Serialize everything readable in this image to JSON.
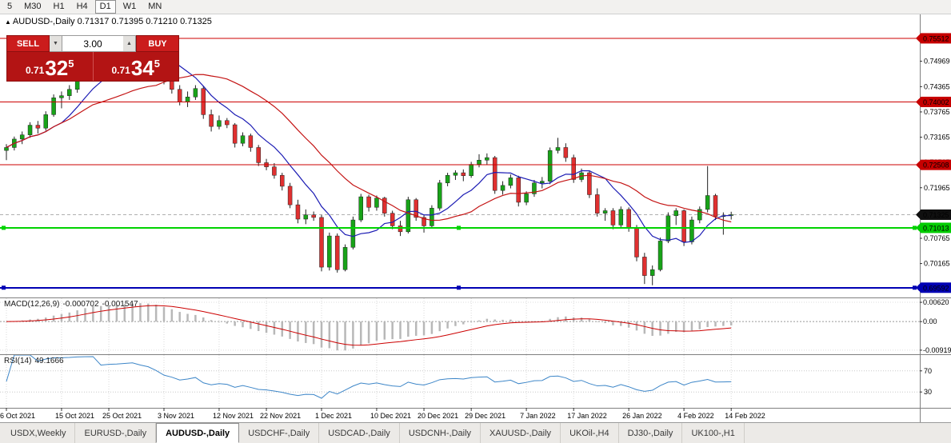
{
  "toolbar": {
    "timeframes": [
      {
        "label": "5",
        "active": false
      },
      {
        "label": "M30",
        "active": false
      },
      {
        "label": "H1",
        "active": false
      },
      {
        "label": "H4",
        "active": false
      },
      {
        "label": "D1",
        "active": true
      },
      {
        "label": "W1",
        "active": false
      },
      {
        "label": "MN",
        "active": false
      }
    ]
  },
  "chart_header": {
    "marker_icon": "▲",
    "symbol_title": "AUDUSD-,Daily",
    "ohlc": "0.71317 0.71395 0.71210 0.71325"
  },
  "trade_panel": {
    "sell_label": "SELL",
    "buy_label": "BUY",
    "volume": "3.00",
    "spin_down_icon": "▼",
    "spin_up_icon": "▲",
    "sell_price": {
      "prefix": "0.71",
      "big": "32",
      "sup": "5"
    },
    "buy_price": {
      "prefix": "0.71",
      "big": "34",
      "sup": "5"
    }
  },
  "chart_data": {
    "type": "candlestick",
    "symbol": "AUDUSD-,Daily",
    "open": 0.71317,
    "high": 0.71395,
    "low": 0.7121,
    "close": 0.71325,
    "current_price": 0.71325,
    "price_range": {
      "min": 0.6936,
      "max": 0.7608
    },
    "macd_range": {
      "min": -0.0105,
      "max": 0.0075
    },
    "colors": {
      "up": "#18a318",
      "down": "#e03030",
      "wick": "#222222",
      "macd_hist": "#b8b8b8",
      "macd_signal": "#cc0000",
      "rsi": "#3d86c8",
      "grid": "#d9d9d9",
      "badge_current": "#101010"
    },
    "ma": [
      {
        "period": 8,
        "color": "#1c1cb4"
      },
      {
        "period": 20,
        "color": "#c41414"
      }
    ],
    "hlines": [
      {
        "value": 0.75512,
        "color": "#cc0000",
        "width": 1,
        "handles": false
      },
      {
        "value": 0.74002,
        "color": "#cc0000",
        "width": 1,
        "handles": false
      },
      {
        "value": 0.72508,
        "color": "#cc0000",
        "width": 1,
        "handles": false
      },
      {
        "value": 0.71013,
        "color": "#00d300",
        "width": 2,
        "handles": true
      },
      {
        "value": 0.69592,
        "color": "#0000b4",
        "width": 2,
        "handles": true
      }
    ],
    "price_axis": {
      "labels": [
        0.74969,
        0.74365,
        0.73765,
        0.73165,
        0.72565,
        0.71965,
        0.70765,
        0.70165
      ],
      "badges": [
        {
          "value": 0.75512,
          "text": "0.75512",
          "bg": "#c70000",
          "fg": "#ffffff"
        },
        {
          "value": 0.74002,
          "text": "0.74002",
          "bg": "#c70000",
          "fg": "#ffffff"
        },
        {
          "value": 0.72508,
          "text": "0.72508",
          "bg": "#c70000",
          "fg": "#ffffff"
        },
        {
          "value": 0.71325,
          "text": "0.71325",
          "bg": "#101010",
          "fg": "#ffffff"
        },
        {
          "value": 0.71013,
          "text": "0.71013",
          "bg": "#00cc00",
          "fg": "#003300"
        },
        {
          "value": 0.69592,
          "text": "0.69592",
          "bg": "#0000b4",
          "fg": "#ffffff"
        }
      ]
    },
    "date_labels": [
      {
        "index": 0,
        "label": "6 Oct 2021"
      },
      {
        "index": 7,
        "label": "15 Oct 2021"
      },
      {
        "index": 13,
        "label": "25 Oct 2021"
      },
      {
        "index": 20,
        "label": "3 Nov 2021"
      },
      {
        "index": 27,
        "label": "12 Nov 2021"
      },
      {
        "index": 33,
        "label": "22 Nov 2021"
      },
      {
        "index": 40,
        "label": "1 Dec 2021"
      },
      {
        "index": 47,
        "label": "10 Dec 2021"
      },
      {
        "index": 53,
        "label": "20 Dec 2021"
      },
      {
        "index": 59,
        "label": "29 Dec 2021"
      },
      {
        "index": 66,
        "label": "7 Jan 2022"
      },
      {
        "index": 72,
        "label": "17 Jan 2022"
      },
      {
        "index": 79,
        "label": "26 Jan 2022"
      },
      {
        "index": 86,
        "label": "4 Feb 2022"
      },
      {
        "index": 92,
        "label": "14 Feb 2022"
      }
    ],
    "candles": [
      [
        0.7285,
        0.73,
        0.7262,
        0.7292
      ],
      [
        0.7292,
        0.7318,
        0.7285,
        0.7312
      ],
      [
        0.7312,
        0.733,
        0.73,
        0.7322
      ],
      [
        0.7322,
        0.7352,
        0.7315,
        0.7345
      ],
      [
        0.7345,
        0.7355,
        0.7325,
        0.7338
      ],
      [
        0.7338,
        0.7378,
        0.7332,
        0.737
      ],
      [
        0.737,
        0.7418,
        0.7365,
        0.741
      ],
      [
        0.741,
        0.7425,
        0.7385,
        0.7415
      ],
      [
        0.7415,
        0.744,
        0.7405,
        0.743
      ],
      [
        0.743,
        0.7482,
        0.7422,
        0.7475
      ],
      [
        0.7475,
        0.7508,
        0.746,
        0.75
      ],
      [
        0.75,
        0.7525,
        0.7488,
        0.7515
      ],
      [
        0.7515,
        0.752,
        0.746,
        0.7468
      ],
      [
        0.7468,
        0.7498,
        0.7455,
        0.749
      ],
      [
        0.749,
        0.7512,
        0.7478,
        0.7502
      ],
      [
        0.7502,
        0.753,
        0.7492,
        0.7522
      ],
      [
        0.7522,
        0.7555,
        0.7515,
        0.7545
      ],
      [
        0.7545,
        0.755,
        0.7518,
        0.753
      ],
      [
        0.753,
        0.7538,
        0.7505,
        0.7518
      ],
      [
        0.7518,
        0.7525,
        0.748,
        0.749
      ],
      [
        0.749,
        0.7495,
        0.7442,
        0.745
      ],
      [
        0.745,
        0.7462,
        0.742,
        0.743
      ],
      [
        0.743,
        0.744,
        0.7392,
        0.74
      ],
      [
        0.74,
        0.7425,
        0.7388,
        0.7412
      ],
      [
        0.7412,
        0.744,
        0.7405,
        0.7432
      ],
      [
        0.7432,
        0.7438,
        0.736,
        0.737
      ],
      [
        0.737,
        0.7382,
        0.733,
        0.7342
      ],
      [
        0.7342,
        0.7368,
        0.7335,
        0.7356
      ],
      [
        0.7356,
        0.7362,
        0.7338,
        0.7346
      ],
      [
        0.7346,
        0.735,
        0.7292,
        0.7302
      ],
      [
        0.7302,
        0.7328,
        0.7295,
        0.732
      ],
      [
        0.732,
        0.7325,
        0.7282,
        0.7292
      ],
      [
        0.7292,
        0.7298,
        0.7248,
        0.7256
      ],
      [
        0.7256,
        0.7265,
        0.7238,
        0.7246
      ],
      [
        0.7246,
        0.7255,
        0.7218,
        0.7226
      ],
      [
        0.7226,
        0.7232,
        0.719,
        0.72
      ],
      [
        0.72,
        0.7208,
        0.7148,
        0.7156
      ],
      [
        0.7156,
        0.7168,
        0.7112,
        0.7122
      ],
      [
        0.7122,
        0.7145,
        0.711,
        0.7132
      ],
      [
        0.7132,
        0.714,
        0.7118,
        0.7126
      ],
      [
        0.7126,
        0.7132,
        0.6998,
        0.7008
      ],
      [
        0.7008,
        0.709,
        0.7,
        0.7082
      ],
      [
        0.7082,
        0.7088,
        0.6995,
        0.7002
      ],
      [
        0.7002,
        0.7062,
        0.6998,
        0.7055
      ],
      [
        0.7055,
        0.7128,
        0.705,
        0.712
      ],
      [
        0.712,
        0.7182,
        0.7115,
        0.7175
      ],
      [
        0.7175,
        0.718,
        0.714,
        0.715
      ],
      [
        0.715,
        0.7178,
        0.7142,
        0.7172
      ],
      [
        0.7172,
        0.7175,
        0.7128,
        0.7136
      ],
      [
        0.7136,
        0.7142,
        0.7098,
        0.7106
      ],
      [
        0.7106,
        0.7118,
        0.7082,
        0.7092
      ],
      [
        0.7092,
        0.7175,
        0.7088,
        0.7168
      ],
      [
        0.7168,
        0.7172,
        0.7118,
        0.7126
      ],
      [
        0.7126,
        0.7132,
        0.709,
        0.7106
      ],
      [
        0.7106,
        0.7155,
        0.71,
        0.7148
      ],
      [
        0.7148,
        0.7215,
        0.7142,
        0.7208
      ],
      [
        0.7208,
        0.7232,
        0.72,
        0.7226
      ],
      [
        0.7226,
        0.7238,
        0.7215,
        0.7232
      ],
      [
        0.7232,
        0.724,
        0.7212,
        0.7225
      ],
      [
        0.7225,
        0.7258,
        0.722,
        0.7252
      ],
      [
        0.7252,
        0.7276,
        0.7245,
        0.7262
      ],
      [
        0.7262,
        0.7278,
        0.7252,
        0.7268
      ],
      [
        0.7268,
        0.7272,
        0.7182,
        0.719
      ],
      [
        0.719,
        0.7212,
        0.718,
        0.7202
      ],
      [
        0.7202,
        0.7228,
        0.7195,
        0.722
      ],
      [
        0.722,
        0.7225,
        0.7152,
        0.7162
      ],
      [
        0.7162,
        0.7188,
        0.7155,
        0.7182
      ],
      [
        0.7182,
        0.7215,
        0.7175,
        0.7208
      ],
      [
        0.7208,
        0.7222,
        0.7195,
        0.7212
      ],
      [
        0.7212,
        0.7292,
        0.7205,
        0.7285
      ],
      [
        0.7285,
        0.7315,
        0.7278,
        0.7292
      ],
      [
        0.7292,
        0.7302,
        0.7258,
        0.7268
      ],
      [
        0.7268,
        0.7275,
        0.7208,
        0.7216
      ],
      [
        0.7216,
        0.7242,
        0.721,
        0.7232
      ],
      [
        0.7232,
        0.7238,
        0.7172,
        0.718
      ],
      [
        0.718,
        0.7195,
        0.7128,
        0.7136
      ],
      [
        0.7136,
        0.7148,
        0.7118,
        0.7142
      ],
      [
        0.7142,
        0.7148,
        0.7098,
        0.7108
      ],
      [
        0.7108,
        0.7152,
        0.7102,
        0.7145
      ],
      [
        0.7145,
        0.715,
        0.7092,
        0.71
      ],
      [
        0.71,
        0.7108,
        0.7022,
        0.7032
      ],
      [
        0.7032,
        0.7042,
        0.6968,
        0.6988
      ],
      [
        0.6988,
        0.7012,
        0.6965,
        0.7002
      ],
      [
        0.7002,
        0.7078,
        0.6998,
        0.707
      ],
      [
        0.707,
        0.7138,
        0.7065,
        0.713
      ],
      [
        0.713,
        0.7148,
        0.7108,
        0.7142
      ],
      [
        0.7142,
        0.7145,
        0.7058,
        0.7068
      ],
      [
        0.7068,
        0.7128,
        0.7062,
        0.712
      ],
      [
        0.712,
        0.7152,
        0.7112,
        0.7145
      ],
      [
        0.7145,
        0.7248,
        0.7138,
        0.7178
      ],
      [
        0.7178,
        0.7182,
        0.712,
        0.7128
      ],
      [
        0.7128,
        0.7138,
        0.7085,
        0.713
      ],
      [
        0.71317,
        0.71395,
        0.7121,
        0.71325
      ]
    ],
    "macd": {
      "name": "MACD(12,26,9)",
      "value_main": "-0.000702",
      "value_signal": "-0.001547",
      "scale_labels": [
        {
          "text": "0.00620",
          "value": 0.0062
        },
        {
          "text": "0.00",
          "value": 0
        },
        {
          "text": "-0.00919",
          "value": -0.00919
        }
      ]
    },
    "rsi": {
      "name": "RSI(14)",
      "value": "49.1666",
      "levels": [
        70,
        30
      ]
    }
  },
  "tabs": [
    {
      "label": "USDX,Weekly",
      "active": false
    },
    {
      "label": "EURUSD-,Daily",
      "active": false
    },
    {
      "label": "AUDUSD-,Daily",
      "active": true
    },
    {
      "label": "USDCHF-,Daily",
      "active": false
    },
    {
      "label": "USDCAD-,Daily",
      "active": false
    },
    {
      "label": "USDCNH-,Daily",
      "active": false
    },
    {
      "label": "XAUUSD-,Daily",
      "active": false
    },
    {
      "label": "UKOil-,H4",
      "active": false
    },
    {
      "label": "DJ30-,Daily",
      "active": false
    },
    {
      "label": "UK100-,H1",
      "active": false
    }
  ]
}
